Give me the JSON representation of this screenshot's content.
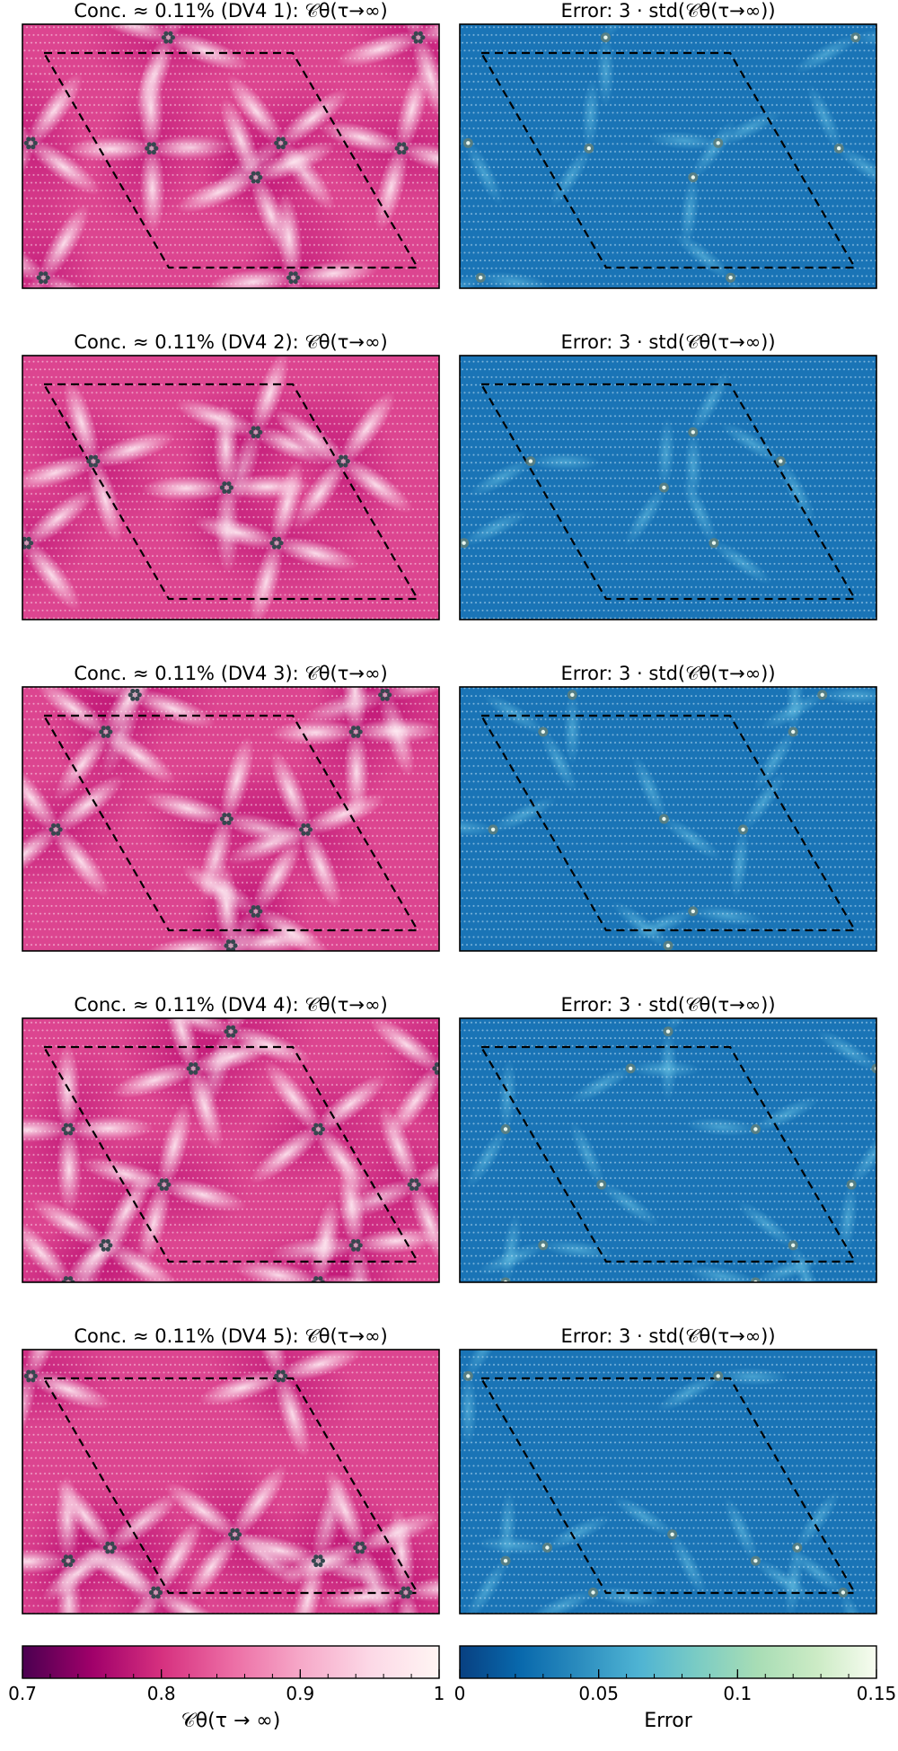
{
  "chart_data": {
    "type": "heatmap",
    "description_rows": 5,
    "colorbars": {
      "left": {
        "label": "𝒞θ(τ → ∞)",
        "range": [
          0.7,
          1.0
        ],
        "ticks": [
          0.7,
          0.8,
          0.9,
          1.0
        ],
        "tick_labels": [
          "0.7",
          "0.8",
          "0.9",
          "1"
        ],
        "colormap": [
          "#4a0050",
          "#a0006a",
          "#d6307f",
          "#ec6ca4",
          "#f6a8c8",
          "#fcd8e6",
          "#fff5f3"
        ]
      },
      "right": {
        "label": "Error",
        "range": [
          0.0,
          0.15
        ],
        "ticks": [
          0.0,
          0.05,
          0.1,
          0.15
        ],
        "tick_labels": [
          "0",
          "0.05",
          "0.1",
          "0.15"
        ],
        "colormap": [
          "#084081",
          "#0868ac",
          "#2b8cbe",
          "#4eb3d3",
          "#7bccc4",
          "#a8ddb5",
          "#ccebc5",
          "#f7fcf0"
        ]
      }
    },
    "panels": [
      {
        "title_left": "Conc. ≈ 0.11% (DV4 1): 𝒞θ(τ→∞)",
        "title_right": "Error: 3 · std(𝒞θ(τ→∞))",
        "defects": [
          [
            0.35,
            0.05
          ],
          [
            0.95,
            0.05
          ],
          [
            0.02,
            0.45
          ],
          [
            0.31,
            0.47
          ],
          [
            0.62,
            0.45
          ],
          [
            0.91,
            0.47
          ],
          [
            0.56,
            0.58
          ],
          [
            0.05,
            0.96
          ],
          [
            0.65,
            0.96
          ]
        ]
      },
      {
        "title_left": "Conc. ≈ 0.11% (DV4 2): 𝒞θ(τ→∞)",
        "title_right": "Error: 3 · std(𝒞θ(τ→∞))",
        "defects": [
          [
            0.56,
            0.29
          ],
          [
            0.17,
            0.4
          ],
          [
            0.77,
            0.4
          ],
          [
            0.49,
            0.5
          ],
          [
            0.01,
            0.71
          ],
          [
            0.61,
            0.71
          ]
        ]
      },
      {
        "title_left": "Conc. ≈ 0.11% (DV4 3): 𝒞θ(τ→∞)",
        "title_right": "Error: 3 · std(𝒞θ(τ→∞))",
        "defects": [
          [
            0.27,
            0.03
          ],
          [
            0.87,
            0.03
          ],
          [
            0.2,
            0.17
          ],
          [
            0.8,
            0.17
          ],
          [
            0.08,
            0.54
          ],
          [
            0.49,
            0.5
          ],
          [
            0.68,
            0.54
          ],
          [
            0.56,
            0.85
          ],
          [
            0.5,
            0.98
          ]
        ]
      },
      {
        "title_left": "Conc. ≈ 0.11% (DV4 4): 𝒞θ(τ→∞)",
        "title_right": "Error: 3 · std(𝒞θ(τ→∞))",
        "defects": [
          [
            0.5,
            0.05
          ],
          [
            0.41,
            0.19
          ],
          [
            1.0,
            0.19
          ],
          [
            0.11,
            0.42
          ],
          [
            0.71,
            0.42
          ],
          [
            0.34,
            0.63
          ],
          [
            0.94,
            0.63
          ],
          [
            0.2,
            0.86
          ],
          [
            0.8,
            0.86
          ],
          [
            0.11,
            1.0
          ],
          [
            0.71,
            1.0
          ]
        ]
      },
      {
        "title_left": "Conc. ≈ 0.11% (DV4 5): 𝒞θ(τ→∞)",
        "title_right": "Error: 3 · std(𝒞θ(τ→∞))",
        "defects": [
          [
            0.02,
            0.1
          ],
          [
            0.62,
            0.1
          ],
          [
            0.51,
            0.7
          ],
          [
            0.11,
            0.8
          ],
          [
            0.21,
            0.75
          ],
          [
            0.71,
            0.8
          ],
          [
            0.81,
            0.75
          ],
          [
            0.32,
            0.92
          ],
          [
            0.92,
            0.92
          ]
        ]
      }
    ]
  }
}
